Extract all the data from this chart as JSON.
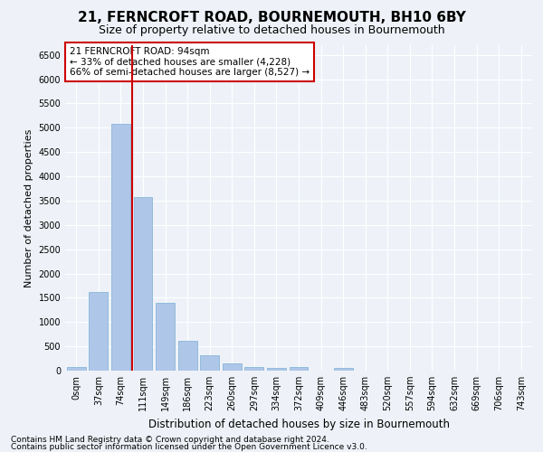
{
  "title1": "21, FERNCROFT ROAD, BOURNEMOUTH, BH10 6BY",
  "title2": "Size of property relative to detached houses in Bournemouth",
  "xlabel": "Distribution of detached houses by size in Bournemouth",
  "ylabel": "Number of detached properties",
  "bar_labels": [
    "0sqm",
    "37sqm",
    "74sqm",
    "111sqm",
    "149sqm",
    "186sqm",
    "223sqm",
    "260sqm",
    "297sqm",
    "334sqm",
    "372sqm",
    "409sqm",
    "446sqm",
    "483sqm",
    "520sqm",
    "557sqm",
    "594sqm",
    "632sqm",
    "669sqm",
    "706sqm",
    "743sqm"
  ],
  "bar_values": [
    70,
    1620,
    5080,
    3580,
    1390,
    610,
    310,
    145,
    80,
    50,
    70,
    0,
    60,
    0,
    0,
    0,
    0,
    0,
    0,
    0,
    0
  ],
  "bar_color": "#aec6e8",
  "bar_edge_color": "#7aafd4",
  "vline_x": 2.5,
  "vline_color": "#cc0000",
  "annotation_text": "21 FERNCROFT ROAD: 94sqm\n← 33% of detached houses are smaller (4,228)\n66% of semi-detached houses are larger (8,527) →",
  "annotation_box_color": "#ffffff",
  "annotation_box_edge": "#cc0000",
  "ylim": [
    0,
    6700
  ],
  "yticks": [
    0,
    500,
    1000,
    1500,
    2000,
    2500,
    3000,
    3500,
    4000,
    4500,
    5000,
    5500,
    6000,
    6500
  ],
  "footnote1": "Contains HM Land Registry data © Crown copyright and database right 2024.",
  "footnote2": "Contains public sector information licensed under the Open Government Licence v3.0.",
  "bg_color": "#eef2f8",
  "grid_color": "#ffffff",
  "title1_fontsize": 11,
  "title2_fontsize": 9,
  "xlabel_fontsize": 8.5,
  "ylabel_fontsize": 8,
  "tick_fontsize": 7,
  "annotation_fontsize": 7.5,
  "footnote_fontsize": 6.5
}
